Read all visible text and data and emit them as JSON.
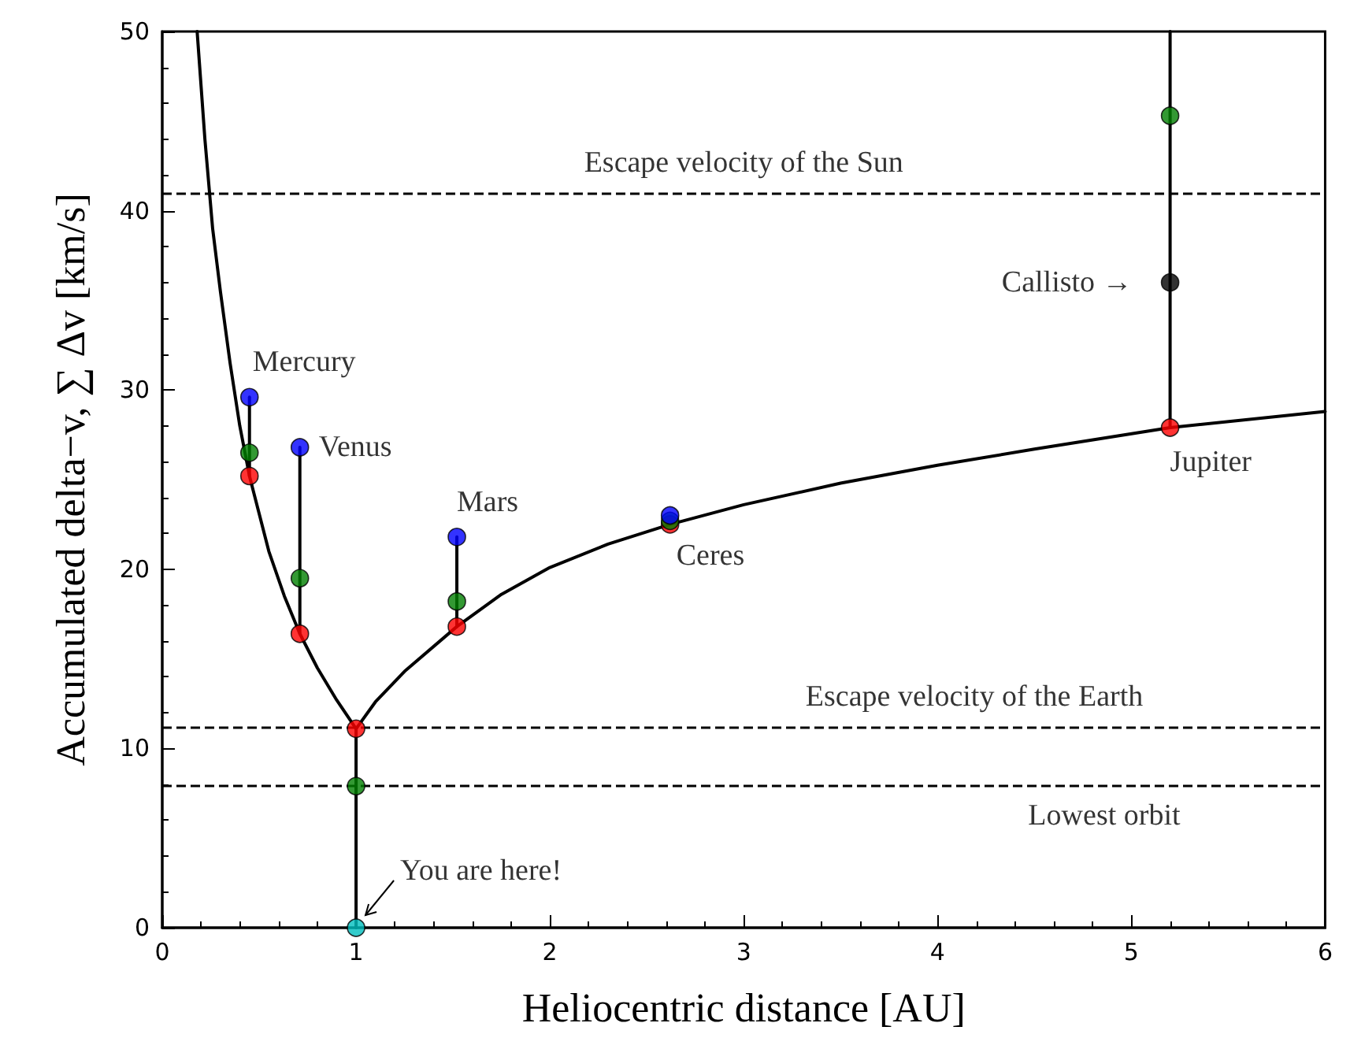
{
  "chart_data": {
    "type": "line",
    "xlabel": "Heliocentric distance [AU]",
    "ylabel": "Accumulated delta−v, ∑ Δv [km/s]",
    "xlim": [
      0,
      6
    ],
    "ylim": [
      0,
      50
    ],
    "xticks": [
      0,
      1,
      2,
      3,
      4,
      5,
      6
    ],
    "yticks": [
      0,
      10,
      20,
      30,
      40,
      50
    ],
    "grid": false,
    "series": [
      {
        "color": "#000000",
        "marker": "none",
        "x": [
          0.18,
          0.22,
          0.26,
          0.3,
          0.35,
          0.4,
          0.45,
          0.55,
          0.63,
          0.71,
          0.8,
          0.9,
          1
        ],
        "values": [
          50,
          44,
          39,
          35.5,
          31.5,
          28,
          25.2,
          21,
          18.5,
          16.4,
          14.5,
          12.7,
          11.1
        ]
      },
      {
        "color": "#000000",
        "marker": "none",
        "x": [
          1,
          1.1,
          1.25,
          1.52,
          1.75,
          2,
          2.3,
          2.62,
          3,
          3.5,
          4,
          4.5,
          5.2,
          6
        ],
        "values": [
          11.1,
          12.6,
          14.3,
          16.8,
          18.6,
          20.1,
          21.4,
          22.5,
          23.6,
          24.8,
          25.8,
          26.7,
          27.9,
          28.8
        ]
      },
      {
        "type": "line",
        "color": "#000000",
        "marker": "none",
        "x": [
          0.45,
          0.45
        ],
        "values": [
          25.2,
          29.6
        ]
      },
      {
        "type": "line",
        "color": "#000000",
        "marker": "none",
        "x": [
          0.71,
          0.71
        ],
        "values": [
          16.4,
          26.8
        ]
      },
      {
        "type": "line",
        "color": "#000000",
        "marker": "none",
        "x": [
          1,
          1
        ],
        "values": [
          0,
          11.1
        ]
      },
      {
        "type": "line",
        "color": "#000000",
        "marker": "none",
        "x": [
          1.52,
          1.52
        ],
        "values": [
          16.8,
          21.8
        ]
      },
      {
        "type": "line",
        "color": "#000000",
        "marker": "none",
        "x": [
          5.2,
          5.2
        ],
        "values": [
          27.9,
          50
        ]
      },
      {
        "type": "scatter",
        "color": "#ff0000",
        "marker": "circle",
        "x": [
          0.45,
          0.71,
          1,
          1.52,
          2.62,
          5.2
        ],
        "values": [
          25.2,
          16.4,
          11.1,
          16.8,
          22.5,
          27.9
        ]
      },
      {
        "type": "scatter",
        "color": "#008000",
        "marker": "circle",
        "x": [
          0.45,
          0.71,
          1,
          1.52,
          2.62,
          5.2
        ],
        "values": [
          26.5,
          19.5,
          7.9,
          18.2,
          22.7,
          45.3
        ]
      },
      {
        "type": "scatter",
        "color": "#0000ff",
        "marker": "circle",
        "x": [
          0.45,
          0.71,
          1.52,
          2.62
        ],
        "values": [
          29.6,
          26.8,
          21.8,
          23
        ]
      },
      {
        "type": "scatter",
        "color": "#000000",
        "marker": "circle",
        "x": [
          5.2
        ],
        "values": [
          36
        ]
      },
      {
        "type": "scatter",
        "color": "#00bfbf",
        "marker": "circle",
        "x": [
          1
        ],
        "values": [
          0
        ]
      }
    ],
    "ref_lines": [
      {
        "axis": "y",
        "value": 41,
        "color": "#000000",
        "line_style": "dashed"
      },
      {
        "axis": "y",
        "value": 11.2,
        "color": "#000000",
        "line_style": "dashed"
      },
      {
        "axis": "y",
        "value": 7.9,
        "color": "#000000",
        "line_style": "dashed"
      }
    ],
    "annotations": [
      {
        "text": "Mercury",
        "x": 0.45,
        "y": 29.6
      },
      {
        "text": "Venus",
        "x": 0.71,
        "y": 26.8
      },
      {
        "text": "Mars",
        "x": 1.52,
        "y": 21.8
      },
      {
        "text": "Ceres",
        "x": 2.62,
        "y": 22.5
      },
      {
        "text": "Jupiter",
        "x": 5.2,
        "y": 27.9
      },
      {
        "text": "Callisto →",
        "x": 5.2,
        "y": 36
      },
      {
        "text": "You are here!",
        "x": 1,
        "y": 0
      },
      {
        "text": "Escape velocity of the Sun",
        "x": 3,
        "y": 41
      },
      {
        "text": "Escape velocity of the Earth",
        "x": 4.19,
        "y": 11.2
      },
      {
        "text": "Lowest orbit",
        "x": 4.86,
        "y": 7.9
      }
    ]
  }
}
